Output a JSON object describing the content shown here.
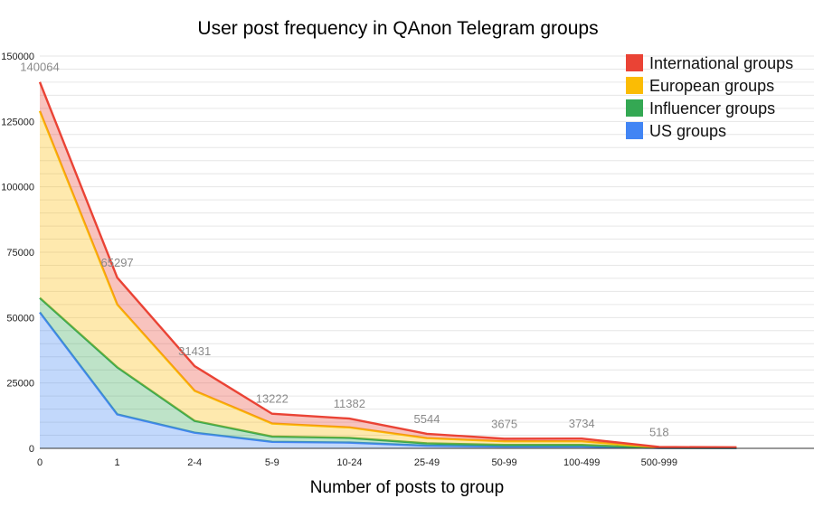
{
  "chart_data": {
    "type": "area",
    "stacked": true,
    "title": "User post frequency in QAnon Telegram groups",
    "xlabel": "Number of posts to group",
    "ylabel": "",
    "categories": [
      "0",
      "1",
      "2-4",
      "5-9",
      "10-24",
      "25-49",
      "50-99",
      "100-499",
      "500-999",
      ""
    ],
    "ylim": [
      0,
      150000
    ],
    "yticks": [
      "0",
      "25000",
      "50000",
      "75000",
      "100000",
      "125000",
      "150000"
    ],
    "grid": true,
    "legend_position": "top-right",
    "series": [
      {
        "name": "US groups",
        "color": "#4285f4",
        "values": [
          52000,
          13000,
          6000,
          2500,
          2200,
          1000,
          700,
          700,
          100,
          80
        ]
      },
      {
        "name": "Influencer groups",
        "color": "#34a853",
        "values": [
          5500,
          18000,
          4500,
          2000,
          1800,
          900,
          600,
          600,
          80,
          60
        ]
      },
      {
        "name": "European groups",
        "color": "#fbbc04",
        "values": [
          71500,
          24000,
          11500,
          5000,
          4000,
          2000,
          1400,
          1400,
          200,
          150
        ]
      },
      {
        "name": "International groups",
        "color": "#ea4335",
        "values": [
          11064,
          10297,
          9431,
          3722,
          3382,
          1644,
          975,
          1034,
          138,
          110
        ]
      }
    ],
    "totals": [
      140064,
      65297,
      31431,
      13222,
      11382,
      5544,
      3675,
      3734,
      518,
      400
    ],
    "data_labels": [
      "140064",
      "65297",
      "31431",
      "13222",
      "11382",
      "5544",
      "3675",
      "3734",
      "518",
      ""
    ]
  }
}
